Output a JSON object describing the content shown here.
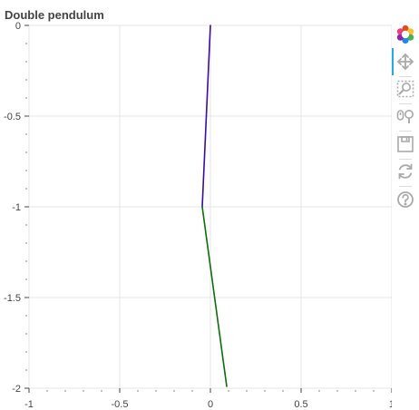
{
  "chart_data": {
    "type": "line",
    "title": "Double pendulum",
    "xlabel": "",
    "ylabel": "",
    "xlim": [
      -1,
      1
    ],
    "ylim": [
      -2,
      0
    ],
    "x_ticks": [
      {
        "value": -1,
        "label": "-1"
      },
      {
        "value": -0.5,
        "label": "-0.5"
      },
      {
        "value": 0,
        "label": "0"
      },
      {
        "value": 0.5,
        "label": "0.5"
      },
      {
        "value": 1,
        "label": "1"
      }
    ],
    "y_ticks": [
      {
        "value": 0,
        "label": "0"
      },
      {
        "value": -0.5,
        "label": "-0.5"
      },
      {
        "value": -1,
        "label": "-1"
      },
      {
        "value": -1.5,
        "label": "-1.5"
      },
      {
        "value": -2,
        "label": "-2"
      }
    ],
    "minor_tick_step": 0.1,
    "grid": true,
    "series": [
      {
        "color": "#3a0ca3",
        "x": [
          0.0,
          -0.045
        ],
        "y": [
          0.0,
          -1.0
        ]
      },
      {
        "color": "#0b6e0b",
        "x": [
          -0.045,
          0.09
        ],
        "y": [
          -1.0,
          -1.99
        ]
      }
    ]
  },
  "toolbar": {
    "tools": [
      {
        "name": "bokeh-logo-icon",
        "interactable": false
      },
      {
        "name": "pan-tool-icon",
        "interactable": true,
        "active": true
      },
      {
        "name": "box-zoom-tool-icon",
        "interactable": true
      },
      {
        "name": "wheel-zoom-tool-icon",
        "interactable": true
      },
      {
        "name": "save-tool-icon",
        "interactable": true
      },
      {
        "name": "reset-tool-icon",
        "interactable": true
      },
      {
        "name": "help-tool-icon",
        "interactable": true
      }
    ]
  }
}
